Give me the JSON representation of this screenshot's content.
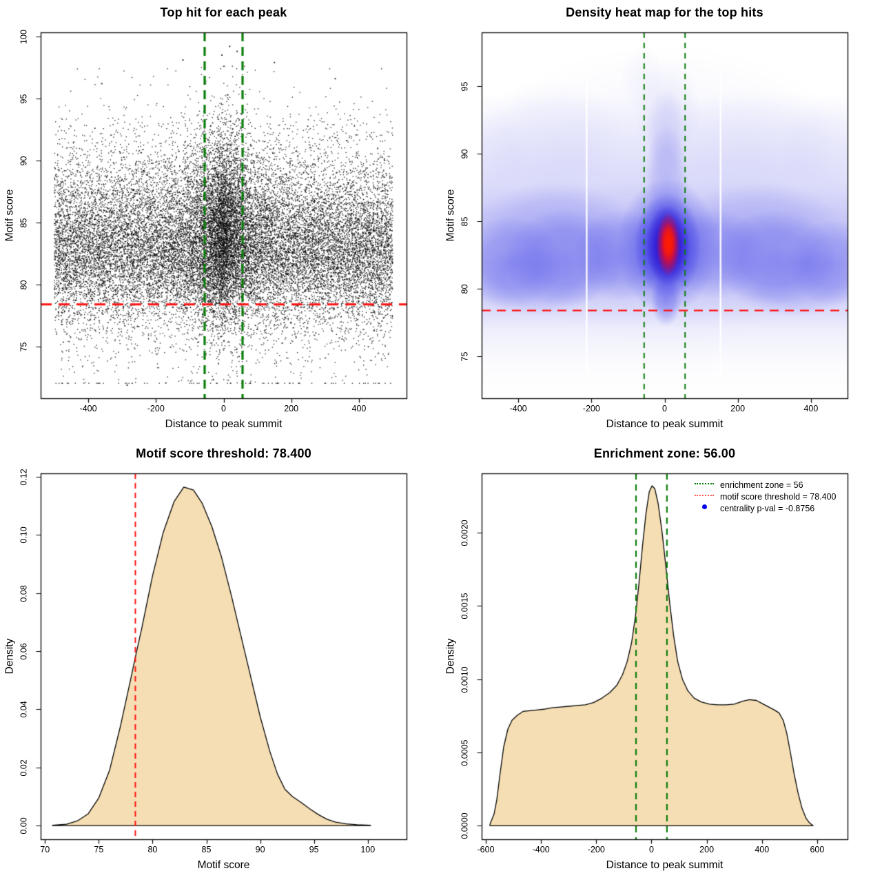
{
  "figure": {
    "background": "#ffffff",
    "frame_color": "#000000"
  },
  "chart_data": [
    {
      "type": "scatter",
      "title": "Top hit for each peak",
      "xlabel": "Distance to peak summit",
      "ylabel": "Motif score",
      "xlim": [
        -540.6,
        540.6
      ],
      "ylim": [
        70.84,
        100.33
      ],
      "xticks": {
        "values": [
          -400,
          -200,
          0,
          200,
          400
        ],
        "labels": [
          "-400",
          "-200",
          "0",
          "200",
          "400"
        ]
      },
      "yticks": {
        "values": [
          75,
          80,
          85,
          90,
          95,
          100
        ],
        "labels": [
          "75",
          "80",
          "85",
          "90",
          "95",
          "100"
        ]
      },
      "point_color": "#000000",
      "point_size": 1.4,
      "point_alpha": 0.82,
      "motif_score_threshold": 78.4,
      "enrichment_zone": 56,
      "generator": {
        "seed": 20240601,
        "background": {
          "n": 19500,
          "x_uniform": [
            -500,
            500
          ],
          "y_mix": [
            [
              0.68,
              82.4,
              2.85
            ],
            [
              0.27,
              86.2,
              3.6
            ],
            [
              0.05,
              78.5,
              4.2
            ]
          ],
          "y_clamp": [
            72.05,
            97.4
          ]
        },
        "central": {
          "n": 5200,
          "x_laplace_scale": 50,
          "y_mix": [
            [
              0.55,
              83.3,
              3.0
            ],
            [
              0.38,
              87.0,
              3.6
            ],
            [
              0.07,
              79.5,
              3.5
            ]
          ],
          "y_clamp": [
            72.3,
            97.6
          ]
        },
        "outliers": [
          [
            -285,
            71.9
          ],
          [
            -30,
            72.35
          ],
          [
            18,
            99.2
          ],
          [
            -5,
            98.5
          ],
          [
            40,
            98.8
          ],
          [
            150,
            97.9
          ],
          [
            -120,
            98.1
          ],
          [
            330,
            96.6
          ],
          [
            -360,
            96.2
          ]
        ]
      },
      "hlines": [
        {
          "y": 78.4,
          "color": "#ff1111",
          "width": 3,
          "dash": [
            16,
            10
          ]
        }
      ],
      "vlines": [
        {
          "x": -56,
          "color": "#0a7d0a",
          "width": 3.2,
          "dash": [
            13,
            8
          ]
        },
        {
          "x": 56,
          "color": "#0a7d0a",
          "width": 3.2,
          "dash": [
            13,
            8
          ]
        }
      ]
    },
    {
      "type": "heatmap",
      "title": "Density heat map for the top hits",
      "xlabel": "Distance to peak summit",
      "ylabel": "Motif score",
      "xlim": [
        -500,
        500
      ],
      "ylim": [
        71.9,
        99.0
      ],
      "xticks": {
        "values": [
          -400,
          -200,
          0,
          200,
          400
        ],
        "labels": [
          "-400",
          "-200",
          "0",
          "200",
          "400"
        ]
      },
      "yticks": {
        "values": [
          75,
          80,
          85,
          90,
          95
        ],
        "labels": [
          "75",
          "80",
          "85",
          "90",
          "95"
        ]
      },
      "hotspot": {
        "x": 10,
        "y": 83.3
      },
      "motif_score_threshold": 78.4,
      "enrichment_zone": 56,
      "band": {
        "rgb": [
          95,
          95,
          235
        ],
        "stops": [
          [
            94.5,
            0
          ],
          [
            88,
            0.18
          ],
          [
            84.5,
            0.38
          ],
          [
            82,
            0.42
          ],
          [
            79.5,
            0.3
          ],
          [
            77,
            0.1
          ],
          [
            74.5,
            0.02
          ],
          [
            72.2,
            0
          ]
        ]
      },
      "blobs": [
        [
          0,
          87,
          560,
          11,
          "#9898f0",
          0.1
        ],
        [
          -310,
          91,
          200,
          4.5,
          "#a8a8f2",
          0.12
        ],
        [
          240,
          90.5,
          230,
          4.5,
          "#a8a8f2",
          0.1
        ],
        [
          10,
          93,
          90,
          4,
          "#a8a8f2",
          0.14
        ],
        [
          -60,
          95.5,
          60,
          2.5,
          "#b4b4f4",
          0.1
        ],
        [
          430,
          90.5,
          120,
          3.5,
          "#a8a8f2",
          0.08
        ],
        [
          -470,
          90,
          100,
          3.5,
          "#a8a8f2",
          0.08
        ],
        [
          -420,
          82.0,
          140,
          3.4,
          "#5b5bea",
          0.42
        ],
        [
          -270,
          82.3,
          170,
          3.6,
          "#5b5bea",
          0.45
        ],
        [
          -120,
          82.5,
          130,
          3.4,
          "#5b5bea",
          0.42
        ],
        [
          140,
          82.6,
          140,
          3.3,
          "#5b5bea",
          0.4
        ],
        [
          300,
          82.3,
          170,
          3.5,
          "#5b5bea",
          0.45
        ],
        [
          455,
          81.9,
          120,
          3.2,
          "#5b5bea",
          0.4
        ],
        [
          -350,
          80.6,
          180,
          2.6,
          "#6b6bee",
          0.3
        ],
        [
          350,
          80.5,
          180,
          2.6,
          "#6b6bee",
          0.3
        ],
        [
          -300,
          85,
          220,
          2.8,
          "#7878ee",
          0.28
        ],
        [
          260,
          85,
          220,
          2.8,
          "#7878ee",
          0.26
        ],
        [
          5,
          88,
          60,
          4.2,
          "#7878ee",
          0.35
        ],
        [
          5,
          91.5,
          55,
          3.5,
          "#9b9bf0",
          0.25
        ],
        [
          8,
          83.2,
          140,
          5.0,
          "#4343e8",
          0.55
        ],
        [
          8,
          83.2,
          92,
          3.9,
          "#2d2de2",
          0.72
        ],
        [
          8,
          83.2,
          60,
          3.0,
          "#2606cd",
          0.85
        ],
        [
          4,
          79.2,
          42,
          2.0,
          "#4343e8",
          0.4
        ],
        [
          10,
          83.3,
          33,
          2.35,
          "#ff0a14",
          0.95
        ],
        [
          11,
          83.4,
          19,
          1.4,
          "#ff1e00",
          1.0
        ]
      ],
      "white_stripes": [
        -213,
        153
      ],
      "hlines": [
        {
          "y": 78.4,
          "color": "#ff1111",
          "width": 2.2,
          "dash": [
            13,
            9
          ]
        }
      ],
      "vlines": [
        {
          "x": -56,
          "color": "#0a7d0a",
          "width": 2,
          "dash": [
            8,
            7
          ]
        },
        {
          "x": 56,
          "color": "#0a7d0a",
          "width": 2,
          "dash": [
            8,
            7
          ]
        }
      ]
    },
    {
      "type": "density",
      "title": "Motif score threshold: 78.400",
      "xlabel": "Motif score",
      "ylabel": "Density",
      "xlim": [
        69.6,
        103.6
      ],
      "ylim": [
        -0.0047,
        0.1212
      ],
      "xticks": {
        "values": [
          70,
          75,
          80,
          85,
          90,
          95,
          100
        ],
        "labels": [
          "70",
          "75",
          "80",
          "85",
          "90",
          "95",
          "100"
        ]
      },
      "yticks": {
        "values": [
          0,
          0.02,
          0.04,
          0.06,
          0.08,
          0.1,
          0.12
        ],
        "labels": [
          "0.00",
          "0.02",
          "0.04",
          "0.06",
          "0.08",
          "0.10",
          "0.12"
        ]
      },
      "fill": "#f5deb3",
      "stroke": "#000000",
      "motif_score_threshold": 78.4,
      "curve": [
        [
          70.7,
          0.0001
        ],
        [
          72.0,
          0.0005
        ],
        [
          73.0,
          0.0016
        ],
        [
          74.0,
          0.004
        ],
        [
          75.0,
          0.0095
        ],
        [
          76.0,
          0.019
        ],
        [
          77.0,
          0.034
        ],
        [
          78.0,
          0.051
        ],
        [
          78.4,
          0.058
        ],
        [
          79.0,
          0.068
        ],
        [
          80.0,
          0.086
        ],
        [
          81.0,
          0.101
        ],
        [
          82.0,
          0.1115
        ],
        [
          82.9,
          0.1165
        ],
        [
          83.8,
          0.1155
        ],
        [
          84.6,
          0.111
        ],
        [
          85.5,
          0.103
        ],
        [
          86.4,
          0.0925
        ],
        [
          87.3,
          0.0795
        ],
        [
          88.2,
          0.0655
        ],
        [
          89.1,
          0.0515
        ],
        [
          90.0,
          0.0375
        ],
        [
          90.9,
          0.0255
        ],
        [
          91.6,
          0.0178
        ],
        [
          92.3,
          0.0125
        ],
        [
          93.0,
          0.01
        ],
        [
          93.8,
          0.008
        ],
        [
          94.6,
          0.0058
        ],
        [
          95.4,
          0.0038
        ],
        [
          96.2,
          0.0022
        ],
        [
          97.0,
          0.0012
        ],
        [
          98.0,
          0.0006
        ],
        [
          99.0,
          0.0003
        ],
        [
          100.25,
          0.0001
        ]
      ],
      "vlines": [
        {
          "x": 78.4,
          "color": "#ff1111",
          "width": 2,
          "dash": [
            8,
            6
          ]
        }
      ]
    },
    {
      "type": "density",
      "title": "Enrichment zone: 56.00",
      "xlabel": "Distance to peak summit",
      "ylabel": "Density",
      "xlim": [
        -615,
        710
      ],
      "ylim": [
        -9.25e-05,
        0.0024045
      ],
      "xticks": {
        "values": [
          -600,
          -400,
          -200,
          0,
          200,
          400,
          600
        ],
        "labels": [
          "-600",
          "-400",
          "-200",
          "0",
          "200",
          "400",
          "600"
        ]
      },
      "yticks": {
        "values": [
          0,
          0.0005,
          0.001,
          0.0015,
          0.002
        ],
        "labels": [
          "0.0000",
          "0.0005",
          "0.0010",
          "0.0015",
          "0.0020"
        ]
      },
      "fill": "#f5deb3",
      "stroke": "#000000",
      "enrichment_zone": 56,
      "curve": [
        [
          -585,
          1e-05
        ],
        [
          -570,
          8e-05
        ],
        [
          -560,
          0.00018
        ],
        [
          -548,
          0.00036
        ],
        [
          -535,
          0.00054
        ],
        [
          -520,
          0.00066
        ],
        [
          -505,
          0.00072
        ],
        [
          -485,
          0.000755
        ],
        [
          -465,
          0.00078
        ],
        [
          -440,
          0.000785
        ],
        [
          -415,
          0.00079
        ],
        [
          -390,
          0.000795
        ],
        [
          -360,
          0.000805
        ],
        [
          -330,
          0.00081
        ],
        [
          -300,
          0.000815
        ],
        [
          -270,
          0.00082
        ],
        [
          -240,
          0.000825
        ],
        [
          -210,
          0.00084
        ],
        [
          -180,
          0.00087
        ],
        [
          -150,
          0.00091
        ],
        [
          -125,
          0.00096
        ],
        [
          -105,
          0.00103
        ],
        [
          -88,
          0.00112
        ],
        [
          -72,
          0.00125
        ],
        [
          -58,
          0.00143
        ],
        [
          -45,
          0.00166
        ],
        [
          -32,
          0.00192
        ],
        [
          -20,
          0.00213
        ],
        [
          -8,
          0.00228
        ],
        [
          2,
          0.00232
        ],
        [
          12,
          0.0023
        ],
        [
          24,
          0.0022
        ],
        [
          38,
          0.00201
        ],
        [
          52,
          0.00177
        ],
        [
          66,
          0.00152
        ],
        [
          80,
          0.0013
        ],
        [
          95,
          0.00112
        ],
        [
          112,
          0.001
        ],
        [
          132,
          0.00092
        ],
        [
          155,
          0.00087
        ],
        [
          180,
          0.000845
        ],
        [
          210,
          0.00083
        ],
        [
          240,
          0.000825
        ],
        [
          270,
          0.000825
        ],
        [
          300,
          0.00083
        ],
        [
          330,
          0.00085
        ],
        [
          355,
          0.00086
        ],
        [
          380,
          0.000855
        ],
        [
          405,
          0.00083
        ],
        [
          425,
          0.00081
        ],
        [
          445,
          0.00079
        ],
        [
          462,
          0.00077
        ],
        [
          477,
          0.00072
        ],
        [
          490,
          0.00063
        ],
        [
          503,
          0.0005
        ],
        [
          516,
          0.00036
        ],
        [
          530,
          0.00023
        ],
        [
          545,
          0.00012
        ],
        [
          560,
          5e-05
        ],
        [
          572,
          2e-05
        ],
        [
          585,
          0.0
        ]
      ],
      "vlines": [
        {
          "x": -56,
          "color": "#0a7d0a",
          "width": 2.2,
          "dash": [
            9,
            7
          ]
        },
        {
          "x": 56,
          "color": "#0a7d0a",
          "width": 2.2,
          "dash": [
            9,
            7
          ]
        }
      ],
      "legend": {
        "items": [
          {
            "marker": "dotted-line",
            "color": "#0a7d0a",
            "label": "enrichment zone = 56"
          },
          {
            "marker": "dotted-line",
            "color": "#ff5555",
            "label": "motif score threshold = 78.400"
          },
          {
            "marker": "dot",
            "color": "#0000ee",
            "label": "centrality p-val = -0.8756"
          }
        ]
      }
    }
  ]
}
